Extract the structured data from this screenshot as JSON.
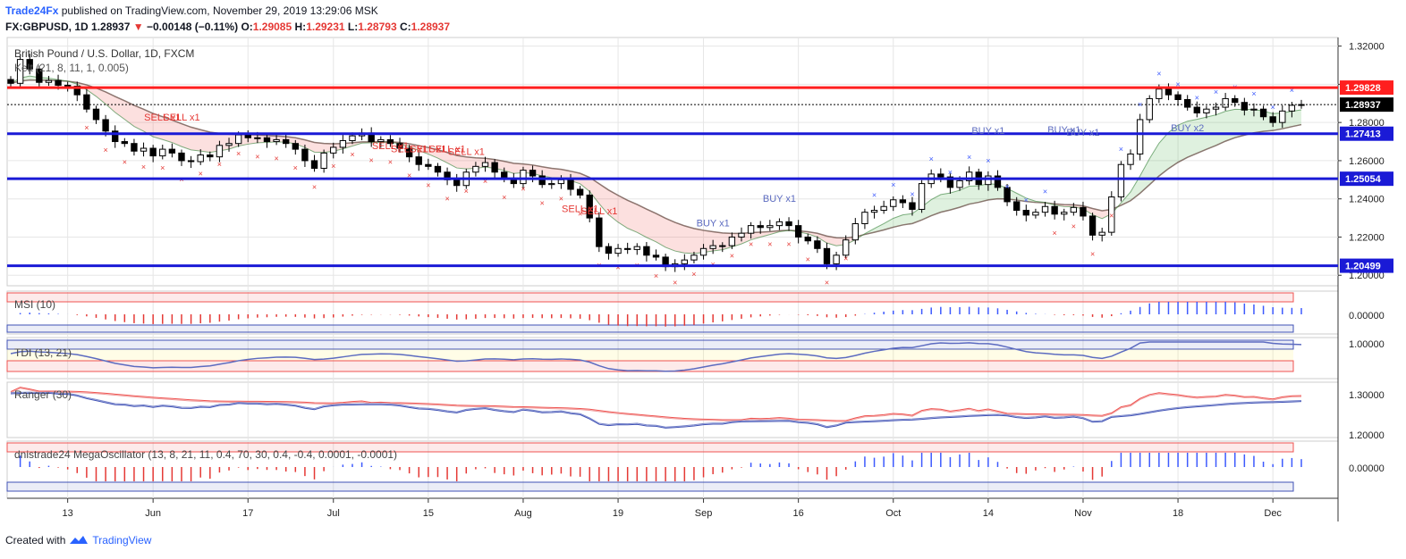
{
  "header": {
    "publisher": "Trade24Fx",
    "published_text": "published on TradingView.com, November 29, 2019 13:29:06 MSK",
    "symbol": "FX:GBPUSD, 1D",
    "last": "1.28937",
    "change": "−0.00148 (−0.11%)",
    "o_label": "O:",
    "o": "1.29085",
    "h_label": "H:",
    "h": "1.29231",
    "l_label": "L:",
    "l": "1.28793",
    "c_label": "C:",
    "c": "1.28937"
  },
  "footer": {
    "created_with": "Created with",
    "brand": "TradingView"
  },
  "colors": {
    "up": "#ffffff",
    "down": "#000000",
    "red": "#ff1f1f",
    "blue": "#1a1ad6",
    "cross_red": "#e53935",
    "cross_blue": "#3d5afe",
    "grid": "#e6e6e6",
    "axis": "#333333"
  },
  "chart_data": {
    "type": "candlestick",
    "title": "British Pound / U.S. Dollar, 1D, FXCM",
    "indicator_label": "Kelt (21, 8, 11, 1, 0.005)",
    "y_ticks": [
      "1.32000",
      "1.30000",
      "1.28000",
      "1.26000",
      "1.24000",
      "1.22000",
      "1.20000"
    ],
    "y_tick_values": [
      1.32,
      1.3,
      1.28,
      1.26,
      1.24,
      1.22,
      1.2
    ],
    "ylim": [
      1.1945,
      1.3245
    ],
    "x_labels": [
      "13",
      "Jun",
      "17",
      "Jul",
      "15",
      "Aug",
      "19",
      "Sep",
      "16",
      "Oct",
      "14",
      "Nov",
      "18",
      "Dec"
    ],
    "x_label_positions": [
      6,
      15,
      25,
      34,
      44,
      54,
      64,
      73,
      83,
      93,
      103,
      113,
      123,
      133
    ],
    "num_bars": 137,
    "horizontal_levels": [
      {
        "value": 1.29828,
        "label": "1.29828",
        "color": "red"
      },
      {
        "value": 1.27413,
        "label": "1.27413",
        "color": "blue"
      },
      {
        "value": 1.25054,
        "label": "1.25054",
        "color": "blue"
      },
      {
        "value": 1.20499,
        "label": "1.20499",
        "color": "blue"
      }
    ],
    "current_price": {
      "value": 1.28937,
      "label": "1.28937"
    },
    "closes": [
      1.3005,
      1.313,
      1.308,
      1.301,
      1.302,
      1.2995,
      1.299,
      1.2945,
      1.287,
      1.2815,
      1.2755,
      1.27,
      1.269,
      1.265,
      1.2665,
      1.2625,
      1.266,
      1.264,
      1.26,
      1.2595,
      1.263,
      1.262,
      1.268,
      1.269,
      1.2735,
      1.272,
      1.272,
      1.27,
      1.271,
      1.269,
      1.266,
      1.26,
      1.256,
      1.264,
      1.267,
      1.2705,
      1.273,
      1.2745,
      1.27,
      1.271,
      1.269,
      1.2665,
      1.262,
      1.258,
      1.257,
      1.254,
      1.25,
      1.247,
      1.254,
      1.257,
      1.259,
      1.254,
      1.2505,
      1.248,
      1.255,
      1.252,
      1.2475,
      1.248,
      1.25,
      1.245,
      1.242,
      1.23,
      1.215,
      1.2115,
      1.214,
      1.2135,
      1.215,
      1.2105,
      1.2095,
      1.2045,
      1.206,
      1.208,
      1.2105,
      1.214,
      1.2155,
      1.2155,
      1.22,
      1.222,
      1.226,
      1.225,
      1.226,
      1.228,
      1.226,
      1.22,
      1.218,
      1.214,
      1.206,
      1.2105,
      1.2185,
      1.227,
      1.233,
      1.234,
      1.236,
      1.2395,
      1.238,
      1.2345,
      1.248,
      1.253,
      1.2515,
      1.246,
      1.2495,
      1.254,
      1.2475,
      1.252,
      1.246,
      1.2385,
      1.234,
      1.2315,
      1.233,
      1.236,
      1.232,
      1.233,
      1.2355,
      1.231,
      1.221,
      1.2225,
      1.241,
      1.258,
      1.2635,
      1.2815,
      1.2925,
      1.2975,
      1.2945,
      1.292,
      1.288,
      1.285,
      1.287,
      1.288,
      1.2925,
      1.2905,
      1.2865,
      1.287,
      1.283,
      1.28,
      1.286,
      1.289,
      1.2894
    ],
    "indicators": [
      {
        "name": "MSI (10)",
        "y_tick": "0.00000"
      },
      {
        "name": "TDI (13, 21)",
        "y_tick": "1.00000"
      },
      {
        "name": "Ranger (30)",
        "y_ticks": [
          "1.30000",
          "1.20000"
        ]
      },
      {
        "name": "dnistrade24 MegaOscillator (13, 8, 21, 11, 0.4, 70, 30, 0.4, -0.4, 0.0001, -0.0001)",
        "y_tick": "0.00000"
      }
    ],
    "annotations": [
      {
        "text": "SELL x1",
        "bar": 16,
        "price": 1.281
      },
      {
        "text": "SELL x1",
        "bar": 18,
        "price": 1.281
      },
      {
        "text": "SELL x1",
        "bar": 40,
        "price": 1.266
      },
      {
        "text": "SELL x1",
        "bar": 42,
        "price": 1.2645
      },
      {
        "text": "SELL x1",
        "bar": 44,
        "price": 1.2645
      },
      {
        "text": "SELL x1",
        "bar": 46,
        "price": 1.2645
      },
      {
        "text": "SELL x1",
        "bar": 48,
        "price": 1.263
      },
      {
        "text": "SELL x1",
        "bar": 60,
        "price": 1.233
      },
      {
        "text": "SELL x1",
        "bar": 62,
        "price": 1.232
      },
      {
        "text": "BUY x1",
        "bar": 74,
        "price": 1.2255
      },
      {
        "text": "BUY x1",
        "bar": 81,
        "price": 1.2385
      },
      {
        "text": "BUY x1",
        "bar": 103,
        "price": 1.274
      },
      {
        "text": "BUY x1",
        "bar": 111,
        "price": 1.2745
      },
      {
        "text": "BUY x1",
        "bar": 113,
        "price": 1.273
      },
      {
        "text": "BUY x2",
        "bar": 124,
        "price": 1.2755
      }
    ]
  }
}
